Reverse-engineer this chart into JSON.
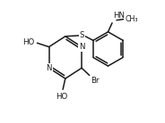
{
  "bg_color": "#ffffff",
  "line_color": "#1a1a1a",
  "line_width": 1.1,
  "font_size": 6.2,
  "fig_width": 1.84,
  "fig_height": 1.38,
  "dpi": 100,
  "xlim": [
    0,
    10
  ],
  "ylim": [
    0,
    7.5
  ]
}
